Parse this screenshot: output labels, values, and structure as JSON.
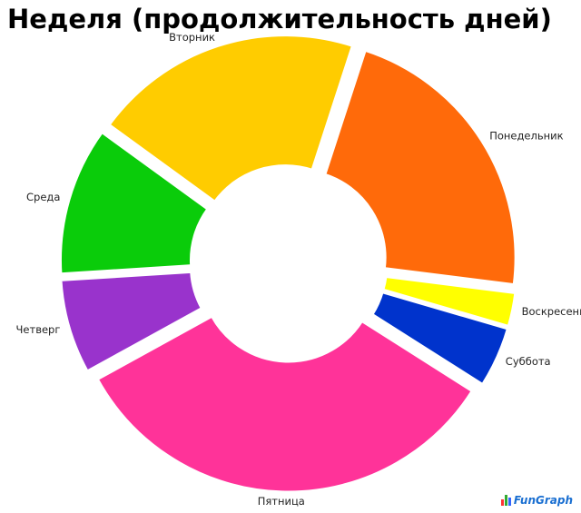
{
  "chart_data": {
    "type": "pie",
    "variant": "donut-exploded",
    "title": "Неделя (продолжительность дней)",
    "categories": [
      "Понедельник",
      "Воскресенье",
      "Суббота",
      "Пятница",
      "Четверг",
      "Среда",
      "Вторник"
    ],
    "values": [
      22,
      2.5,
      4.5,
      33,
      7,
      11,
      20
    ],
    "colors": [
      "#ff6a0a",
      "#ffff00",
      "#0033cc",
      "#ff3399",
      "#9933cc",
      "#0acc0a",
      "#ffcc00"
    ],
    "legend": "none"
  },
  "logo": {
    "text": "FunGraph",
    "bar_colors": [
      "#ff3333",
      "#33aa33",
      "#3366ff"
    ]
  }
}
